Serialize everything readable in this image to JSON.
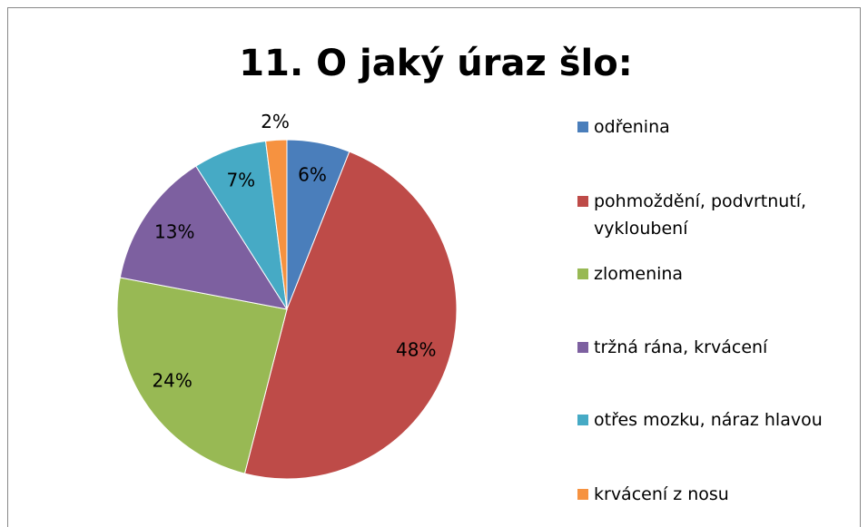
{
  "chart_data": {
    "type": "pie",
    "title": "11. O jaký úraz šlo:",
    "categories": [
      "odřenina",
      "pohmoždění, podvrtnutí, vykloubení",
      "zlomenina",
      "tržná rána, krvácení",
      "otřes mozku, náraz hlavou",
      "krvácení z nosu"
    ],
    "values": [
      6,
      48,
      24,
      13,
      7,
      2
    ],
    "value_labels": [
      "6%",
      "48%",
      "24%",
      "13%",
      "7%",
      "2%"
    ],
    "colors": [
      "#4a7ebb",
      "#be4b48",
      "#98b954",
      "#7d60a0",
      "#46aac5",
      "#f69240"
    ],
    "legend": "right"
  }
}
